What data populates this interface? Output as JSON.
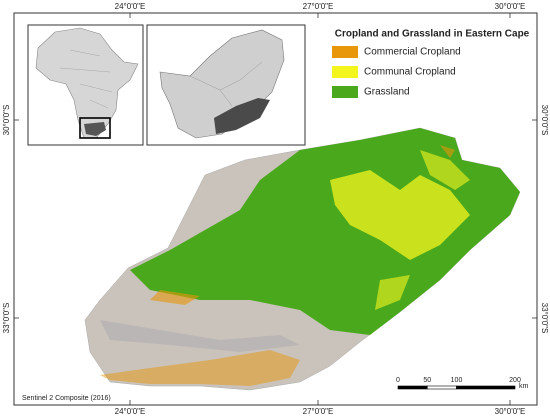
{
  "title": "Cropland and Grassland in Eastern Cape",
  "legend": [
    {
      "label": "Commercial Cropland",
      "color": "#e8960a"
    },
    {
      "label": "Communal Cropland",
      "color": "#f5f51e"
    },
    {
      "label": "Grassland",
      "color": "#4aa81c"
    }
  ],
  "graticule": {
    "longitudes": [
      "24°0'0\"E",
      "27°0'0\"E",
      "30°0'0\"E"
    ],
    "latitudes": [
      "30°0'0\"S",
      "33°0'0\"S"
    ]
  },
  "scale_bar": {
    "ticks": [
      0,
      50,
      100,
      200
    ],
    "unit": "km"
  },
  "source": "Sentinel 2 Composite (2016)"
}
